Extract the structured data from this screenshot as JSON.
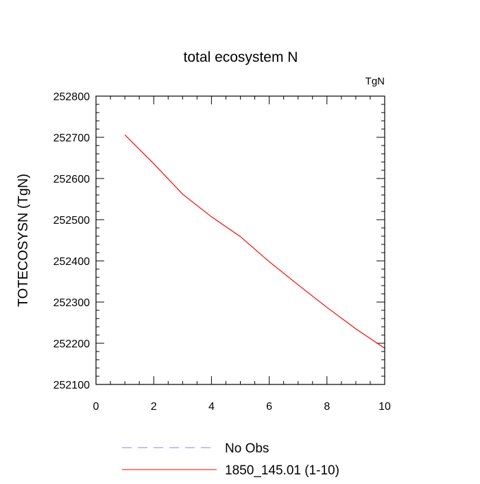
{
  "chart_data": {
    "type": "line",
    "title": "total ecosystem N",
    "units": "TgN",
    "xlabel": "",
    "ylabel": "TOTECOSYSN  (TgN)",
    "xlim": [
      0,
      10
    ],
    "ylim": [
      252100,
      252800
    ],
    "x_ticks": [
      "0",
      "2",
      "4",
      "6",
      "8",
      "10"
    ],
    "y_ticks": [
      "252100",
      "252200",
      "252300",
      "252400",
      "252500",
      "252600",
      "252700",
      "252800"
    ],
    "grid": false,
    "legend_position": "bottom",
    "series": [
      {
        "name": "No Obs",
        "color": "#8080ff",
        "dashed": true,
        "x": [],
        "y": []
      },
      {
        "name": "1850_145.01 (1-10)",
        "color": "#ff0000",
        "dashed": false,
        "x": [
          1,
          2,
          3,
          4,
          5,
          6,
          7,
          8,
          9,
          10
        ],
        "y": [
          252706,
          252636,
          252562,
          252507,
          252459,
          252398,
          252342,
          252287,
          252235,
          252188
        ]
      }
    ]
  }
}
